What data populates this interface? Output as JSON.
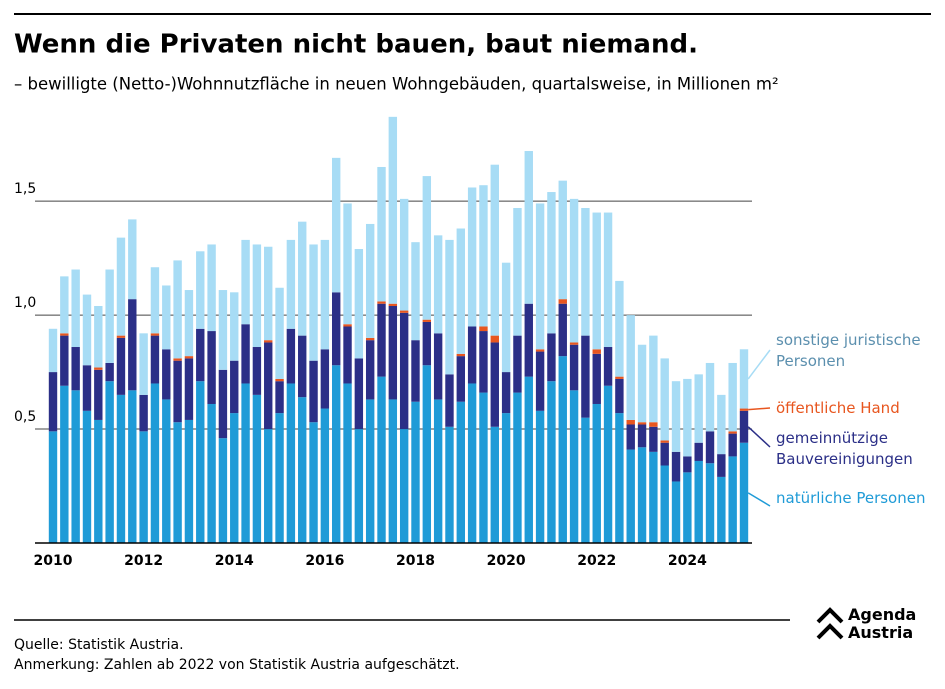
{
  "chart_data": {
    "type": "stacked-bar",
    "title": "Wenn die Privaten nicht bauen, baut niemand.",
    "subtitle": "– bewilligte (Netto-)Wohnnutzfläche in neuen Wohngebäuden, quartalsweise, in Millionen m²",
    "categories": [
      "2010",
      null,
      null,
      null,
      null,
      null,
      null,
      null,
      "2012",
      null,
      null,
      null,
      null,
      null,
      null,
      null,
      "2014",
      null,
      null,
      null,
      null,
      null,
      null,
      null,
      "2016",
      null,
      null,
      null,
      null,
      null,
      null,
      null,
      "2018",
      null,
      null,
      null,
      null,
      null,
      null,
      null,
      "2020",
      null,
      null,
      null,
      null,
      null,
      null,
      null,
      "2022",
      null,
      null,
      null,
      null,
      null,
      null,
      null,
      "2024",
      null,
      null,
      null,
      null,
      null
    ],
    "series": [
      {
        "name": "natürliche Personen",
        "color": "#1f9bd7",
        "values": [
          0.49,
          0.69,
          0.67,
          0.58,
          0.54,
          0.71,
          0.65,
          0.67,
          0.49,
          0.7,
          0.63,
          0.53,
          0.54,
          0.71,
          0.61,
          0.46,
          0.57,
          0.7,
          0.65,
          0.5,
          0.57,
          0.7,
          0.64,
          0.53,
          0.59,
          0.78,
          0.7,
          0.5,
          0.63,
          0.73,
          0.63,
          0.5,
          0.62,
          0.78,
          0.63,
          0.51,
          0.62,
          0.7,
          0.66,
          0.51,
          0.57,
          0.66,
          0.73,
          0.58,
          0.71,
          0.82,
          0.67,
          0.55,
          0.61,
          0.69,
          0.57,
          0.41,
          0.42,
          0.4,
          0.34,
          0.27,
          0.31,
          0.36,
          0.35,
          0.29,
          0.38,
          0.44
        ]
      },
      {
        "name": "gemeinnützige Bauvereinigungen",
        "color": "#2b2f87",
        "values": [
          0.26,
          0.22,
          0.19,
          0.2,
          0.22,
          0.08,
          0.25,
          0.4,
          0.16,
          0.21,
          0.22,
          0.27,
          0.27,
          0.23,
          0.32,
          0.3,
          0.23,
          0.26,
          0.21,
          0.38,
          0.14,
          0.24,
          0.27,
          0.27,
          0.26,
          0.32,
          0.25,
          0.31,
          0.26,
          0.32,
          0.41,
          0.51,
          0.27,
          0.19,
          0.29,
          0.23,
          0.2,
          0.25,
          0.27,
          0.37,
          0.18,
          0.25,
          0.32,
          0.26,
          0.21,
          0.23,
          0.2,
          0.36,
          0.22,
          0.17,
          0.15,
          0.11,
          0.1,
          0.11,
          0.1,
          0.13,
          0.07,
          0.08,
          0.14,
          0.1,
          0.1,
          0.14
        ]
      },
      {
        "name": "öffentliche Hand",
        "color": "#e8561f",
        "values": [
          0,
          0.01,
          0,
          0,
          0.01,
          0,
          0.01,
          0,
          0,
          0.01,
          0,
          0.01,
          0.01,
          0,
          0,
          0,
          0,
          0,
          0,
          0.01,
          0.01,
          0,
          0,
          0,
          0,
          0,
          0.01,
          0,
          0.01,
          0.01,
          0.01,
          0.01,
          0,
          0.01,
          0,
          0,
          0.01,
          0,
          0.02,
          0.03,
          0,
          0,
          0,
          0.01,
          0,
          0.02,
          0.01,
          0,
          0.02,
          0,
          0.01,
          0.02,
          0.01,
          0.02,
          0.01,
          0,
          0,
          0,
          0,
          0,
          0.01,
          0.01
        ]
      },
      {
        "name": "sonstige juristische Personen",
        "color": "#a7dcf5",
        "values": [
          0.19,
          0.25,
          0.34,
          0.31,
          0.27,
          0.41,
          0.43,
          0.35,
          0.27,
          0.29,
          0.28,
          0.43,
          0.29,
          0.34,
          0.38,
          0.35,
          0.3,
          0.37,
          0.45,
          0.41,
          0.4,
          0.39,
          0.5,
          0.51,
          0.48,
          0.59,
          0.53,
          0.48,
          0.5,
          0.59,
          0.82,
          0.49,
          0.43,
          0.63,
          0.43,
          0.59,
          0.55,
          0.61,
          0.62,
          0.75,
          0.48,
          0.56,
          0.67,
          0.64,
          0.62,
          0.52,
          0.63,
          0.56,
          0.6,
          0.59,
          0.42,
          0.46,
          0.34,
          0.38,
          0.36,
          0.31,
          0.34,
          0.3,
          0.3,
          0.26,
          0.3,
          0.26
        ]
      }
    ],
    "ylim": [
      0,
      1.9
    ],
    "yticks": [
      {
        "value": 0.5,
        "label": "0,5"
      },
      {
        "value": 1.0,
        "label": "1,0"
      },
      {
        "value": 1.5,
        "label": "1,5"
      }
    ],
    "grid": true,
    "source": "Quelle: Statistik Austria.",
    "note": "Anmerkung: Zahlen ab 2022 von Statistik Austria aufgeschätzt.",
    "logo": "Agenda Austria"
  }
}
